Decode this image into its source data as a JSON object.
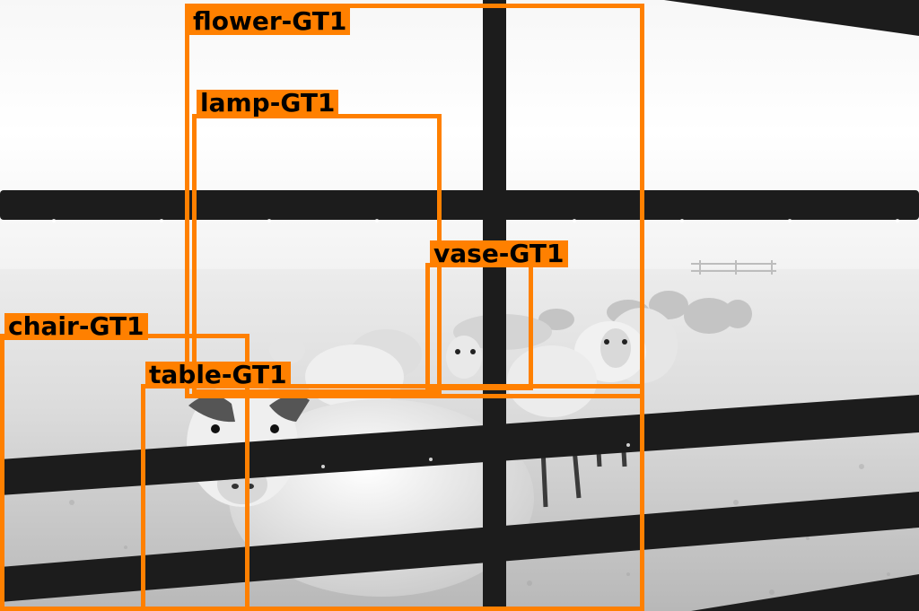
{
  "annotation_color": "#ff8000",
  "label_text_color": "#000000",
  "boxes": [
    {
      "id": "flower",
      "label": "flower-GT1"
    },
    {
      "id": "lamp",
      "label": "lamp-GT1"
    },
    {
      "id": "vase",
      "label": "vase-GT1"
    },
    {
      "id": "chair",
      "label": "chair-GT1"
    },
    {
      "id": "table",
      "label": "table-GT1"
    }
  ]
}
